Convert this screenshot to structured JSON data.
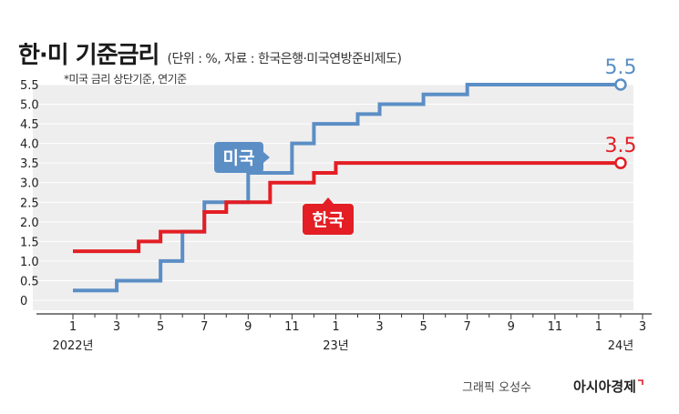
{
  "header": {
    "title": "한·미 기준금리",
    "subtitle": "(단위 : %, 자료 : 한국은행·미국연방준비제도)",
    "note": "*미국 금리 상단기준, 연기준"
  },
  "credit": {
    "author": "그래픽 오성수",
    "brand": "아시아경제"
  },
  "colors": {
    "us": "#5b8ec5",
    "korea": "#e31e24",
    "plot_background": "#eeeeee"
  },
  "chart_data": {
    "type": "line",
    "step": true,
    "x_unit": "month",
    "x_ticks": [
      {
        "label": "1",
        "month": 1
      },
      {
        "label": "3",
        "month": 3
      },
      {
        "label": "5",
        "month": 5
      },
      {
        "label": "7",
        "month": 7
      },
      {
        "label": "9",
        "month": 9
      },
      {
        "label": "11",
        "month": 11
      },
      {
        "label": "1",
        "month": 13
      },
      {
        "label": "3",
        "month": 15
      },
      {
        "label": "5",
        "month": 17
      },
      {
        "label": "7",
        "month": 19
      },
      {
        "label": "9",
        "month": 21
      },
      {
        "label": "11",
        "month": 23
      },
      {
        "label": "1",
        "month": 25
      },
      {
        "label": "3",
        "month": 27
      }
    ],
    "year_labels": [
      {
        "label": "2022년",
        "month": 1
      },
      {
        "label": "23년",
        "month": 13
      },
      {
        "label": "24년",
        "month": 26
      }
    ],
    "y_ticks": [
      "0",
      "0.5",
      "1.0",
      "1.5",
      "2.0",
      "2.5",
      "3.0",
      "3.5",
      "4.0",
      "4.5",
      "5.0",
      "5.5"
    ],
    "ylim": [
      0,
      5.5
    ],
    "xlim": [
      1,
      27
    ],
    "series": [
      {
        "name": "미국",
        "key": "us",
        "end_label": "5.5",
        "points": [
          [
            1,
            0.25
          ],
          [
            3,
            0.5
          ],
          [
            5,
            1.0
          ],
          [
            6,
            1.75
          ],
          [
            7,
            2.5
          ],
          [
            9,
            3.25
          ],
          [
            11,
            4.0
          ],
          [
            12,
            4.5
          ],
          [
            14,
            4.75
          ],
          [
            15,
            5.0
          ],
          [
            17,
            5.25
          ],
          [
            19,
            5.5
          ],
          [
            26,
            5.5
          ]
        ]
      },
      {
        "name": "한국",
        "key": "korea",
        "end_label": "3.5",
        "points": [
          [
            1,
            1.25
          ],
          [
            4,
            1.5
          ],
          [
            5,
            1.75
          ],
          [
            7,
            2.25
          ],
          [
            8,
            2.5
          ],
          [
            10,
            3.0
          ],
          [
            12,
            3.25
          ],
          [
            13,
            3.5
          ],
          [
            26,
            3.5
          ]
        ]
      }
    ]
  }
}
